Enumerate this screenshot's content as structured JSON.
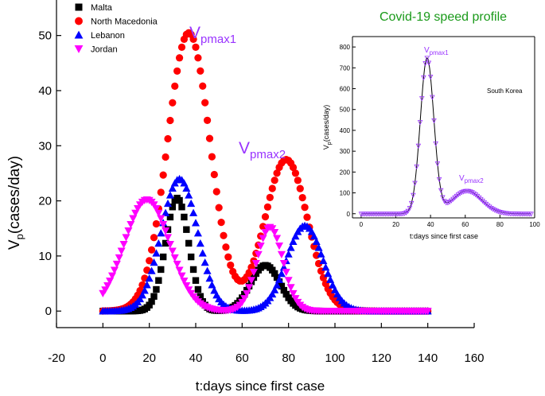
{
  "chart_data": [
    {
      "type": "scatter",
      "title": "Covid-19 speed profile",
      "xlabel": "t:days since first case",
      "ylabel_main": "V",
      "ylabel_sub": "p",
      "ylabel_rest": "(cases/day)",
      "xlim": [
        -20,
        160
      ],
      "ylim": [
        -3,
        55
      ],
      "xticks": [
        -20,
        0,
        20,
        40,
        60,
        80,
        100,
        120,
        140,
        160
      ],
      "yticks": [
        0,
        10,
        20,
        30,
        40,
        50
      ],
      "legend_position": "top-left",
      "series": [
        {
          "name": "Malta",
          "color": "#000000",
          "marker": "square",
          "peaks": [
            {
              "t": 32,
              "v": 20.5,
              "w": 7
            },
            {
              "t": 70,
              "v": 8.3,
              "w": 9
            }
          ]
        },
        {
          "name": "North Macedonia",
          "color": "#ff0000",
          "marker": "circle",
          "peaks": [
            {
              "t": 37,
              "v": 50.5,
              "w": 13
            },
            {
              "t": 79,
              "v": 27.5,
              "w": 13
            }
          ]
        },
        {
          "name": "Lebanon",
          "color": "#0000ff",
          "marker": "triangle-up",
          "peaks": [
            {
              "t": 33,
              "v": 24,
              "w": 11
            },
            {
              "t": 87,
              "v": 15.5,
              "w": 11
            }
          ]
        },
        {
          "name": "Jordan",
          "color": "#ff00ff",
          "marker": "triangle-down",
          "peaks": [
            {
              "t": 19,
              "v": 20.2,
              "w": 14
            },
            {
              "t": 72,
              "v": 15.2,
              "w": 8
            }
          ]
        }
      ],
      "x_range_data": [
        0,
        140
      ],
      "annotations": [
        {
          "main": "V",
          "sub": "pmax1",
          "x": 37,
          "y": 50.5
        },
        {
          "main": "V",
          "sub": "pmax2",
          "x": 79,
          "y": 27.5
        }
      ]
    },
    {
      "type": "line",
      "label": "South Korea",
      "xlabel": "t:days since first case",
      "ylabel_main": "V",
      "ylabel_sub": "p",
      "ylabel_rest": "(cases/day)",
      "xlim": [
        -5,
        100
      ],
      "ylim": [
        -20,
        850
      ],
      "xticks": [
        0,
        20,
        40,
        60,
        80,
        100
      ],
      "yticks": [
        0,
        100,
        200,
        300,
        400,
        500,
        600,
        700,
        800
      ],
      "color": "#9933ff",
      "peaks": [
        {
          "t": 38,
          "v": 745,
          "w": 5.5
        },
        {
          "t": 61,
          "v": 110,
          "w": 12
        }
      ],
      "x_range_data": [
        0,
        98
      ],
      "annotations": [
        {
          "main": "V",
          "sub": "pmax1",
          "x": 38,
          "y": 745
        },
        {
          "main": "V",
          "sub": "pmax2",
          "x": 61,
          "y": 110
        }
      ]
    }
  ]
}
